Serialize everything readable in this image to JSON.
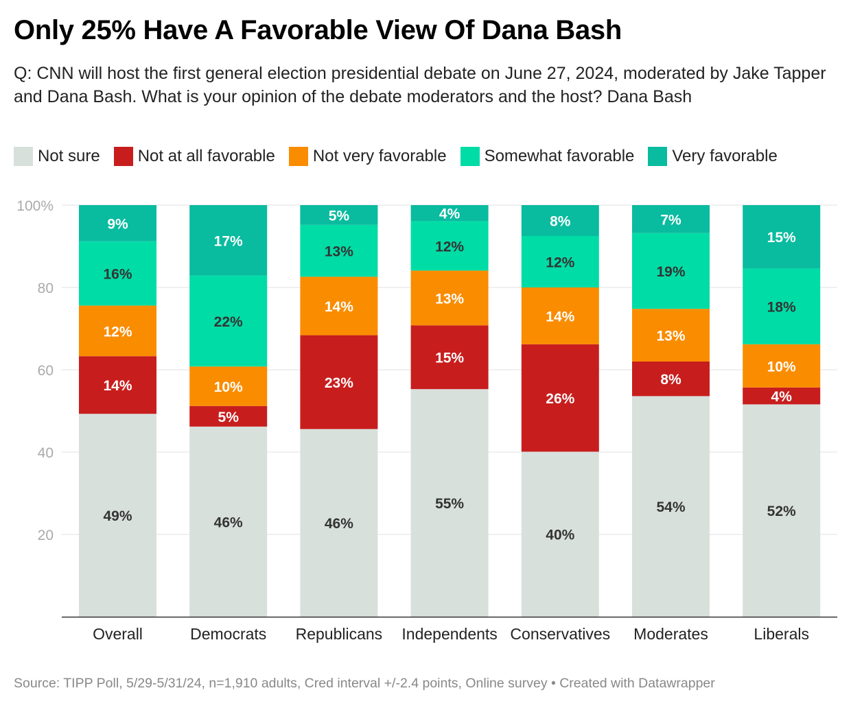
{
  "title": "Only 25% Have A Favorable View Of Dana Bash",
  "subtitle": "Q: CNN will host the first general election presidential debate on June 27, 2024, moderated by Jake Tapper and Dana Bash. What is your opinion of the debate moderators and the host? Dana Bash",
  "source": "Source: TIPP Poll, 5/29-5/31/24, n=1,910 adults, Cred interval +/-2.4 points, Online survey • Created with Datawrapper",
  "legend": [
    {
      "label": "Not sure",
      "color": "#d8e0dc"
    },
    {
      "label": "Not at all favorable",
      "color": "#c71e1d"
    },
    {
      "label": "Not very favorable",
      "color": "#fa8c00"
    },
    {
      "label": "Somewhat favorable",
      "color": "#00dca6"
    },
    {
      "label": "Very favorable",
      "color": "#09bb9f"
    }
  ],
  "chart_data": {
    "type": "bar",
    "stacked": true,
    "categories": [
      "Overall",
      "Democrats",
      "Republicans",
      "Independents",
      "Conservatives",
      "Moderates",
      "Liberals"
    ],
    "series": [
      {
        "name": "Not sure",
        "color": "#d8e0dc",
        "label_color": "#333333",
        "values": [
          49,
          46,
          46,
          55,
          40,
          54,
          52
        ]
      },
      {
        "name": "Not at all favorable",
        "color": "#c71e1d",
        "label_color": "#ffffff",
        "values": [
          14,
          5,
          23,
          15,
          26,
          8,
          4
        ]
      },
      {
        "name": "Not very favorable",
        "color": "#fa8c00",
        "label_color": "#ffffff",
        "values": [
          12,
          10,
          14,
          13,
          14,
          13,
          10
        ]
      },
      {
        "name": "Somewhat favorable",
        "color": "#00dca6",
        "label_color": "#333333",
        "values": [
          16,
          22,
          13,
          12,
          12,
          19,
          18
        ]
      },
      {
        "name": "Very favorable",
        "color": "#09bb9f",
        "label_color": "#ffffff",
        "values": [
          9,
          17,
          5,
          4,
          8,
          7,
          15
        ]
      }
    ],
    "segment_bounds": [
      [
        [
          0,
          49.3
        ],
        [
          49.3,
          63.3
        ],
        [
          63.3,
          75.6
        ],
        [
          75.6,
          91.2
        ],
        [
          91.2,
          100
        ]
      ],
      [
        [
          0,
          46.2
        ],
        [
          46.2,
          51.2
        ],
        [
          51.2,
          60.8
        ],
        [
          60.8,
          82.9
        ],
        [
          82.9,
          100
        ]
      ],
      [
        [
          0,
          45.6
        ],
        [
          45.6,
          68.4
        ],
        [
          68.4,
          82.6
        ],
        [
          82.6,
          95.2
        ],
        [
          95.2,
          100
        ]
      ],
      [
        [
          0,
          55.3
        ],
        [
          55.3,
          70.8
        ],
        [
          70.8,
          84.1
        ],
        [
          84.1,
          96.1
        ],
        [
          96.1,
          100
        ]
      ],
      [
        [
          0,
          40.1
        ],
        [
          40.1,
          66.2
        ],
        [
          66.2,
          80.0
        ],
        [
          80.0,
          92.5
        ],
        [
          92.5,
          100
        ]
      ],
      [
        [
          0,
          53.6
        ],
        [
          53.6,
          62.0
        ],
        [
          62.0,
          74.8
        ],
        [
          74.8,
          93.2
        ],
        [
          93.2,
          100
        ]
      ],
      [
        [
          0,
          51.6
        ],
        [
          51.6,
          55.7
        ],
        [
          55.7,
          66.2
        ],
        [
          66.2,
          84.6
        ],
        [
          84.6,
          100
        ]
      ]
    ],
    "y_ticks": [
      {
        "value": 20,
        "label": "20"
      },
      {
        "value": 40,
        "label": "40"
      },
      {
        "value": 60,
        "label": "60"
      },
      {
        "value": 80,
        "label": "80"
      },
      {
        "value": 100,
        "label": "100%"
      }
    ],
    "ylim": [
      0,
      100
    ],
    "xlabel": "",
    "ylabel": "",
    "grid": true,
    "legend_position": "top"
  }
}
